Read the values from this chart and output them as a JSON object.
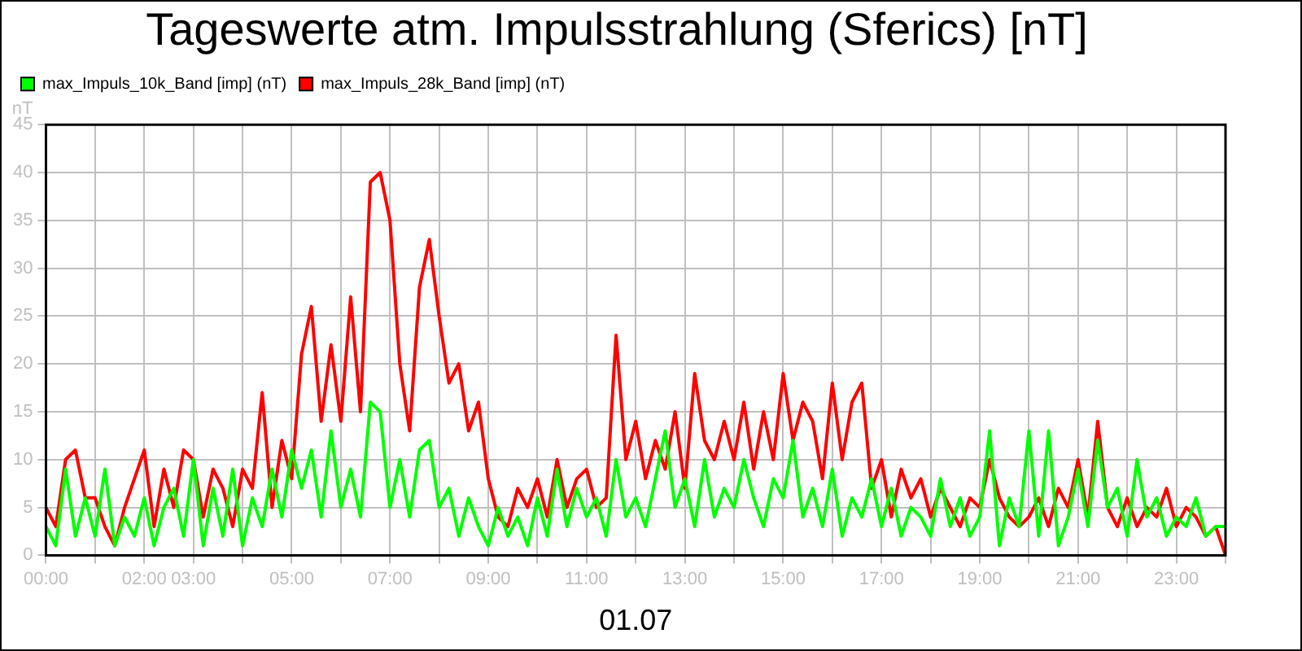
{
  "chart_data": {
    "type": "line",
    "title": "Tageswerte atm. Impulsstrahlung (Sferics) [nT]",
    "xlabel": "01.07",
    "ylabel": "nT",
    "x": [
      0,
      0.2,
      0.4,
      0.6,
      0.8,
      1,
      1.2,
      1.4,
      1.6,
      1.8,
      2,
      2.2,
      2.4,
      2.6,
      2.8,
      3,
      3.2,
      3.4,
      3.6,
      3.8,
      4,
      4.2,
      4.4,
      4.6,
      4.8,
      5,
      5.2,
      5.4,
      5.6,
      5.8,
      6,
      6.2,
      6.4,
      6.6,
      6.8,
      7,
      7.2,
      7.4,
      7.6,
      7.8,
      8,
      8.2,
      8.4,
      8.6,
      8.8,
      9,
      9.2,
      9.4,
      9.6,
      9.8,
      10,
      10.2,
      10.4,
      10.6,
      10.8,
      11,
      11.2,
      11.4,
      11.6,
      11.8,
      12,
      12.2,
      12.4,
      12.6,
      12.8,
      13,
      13.2,
      13.4,
      13.6,
      13.8,
      14,
      14.2,
      14.4,
      14.6,
      14.8,
      15,
      15.2,
      15.4,
      15.6,
      15.8,
      16,
      16.2,
      16.4,
      16.6,
      16.8,
      17,
      17.2,
      17.4,
      17.6,
      17.8,
      18,
      18.2,
      18.4,
      18.6,
      18.8,
      19,
      19.2,
      19.4,
      19.6,
      19.8,
      20,
      20.2,
      20.4,
      20.6,
      20.8,
      21,
      21.2,
      21.4,
      21.6,
      21.8,
      22,
      22.2,
      22.4,
      22.6,
      22.8,
      23,
      23.2,
      23.4,
      23.6,
      23.8,
      24
    ],
    "series": [
      {
        "name": "max_Impuls_10k_Band [imp] (nT)",
        "color": "#00ff00",
        "values": [
          3,
          1,
          9,
          2,
          6,
          2,
          9,
          1,
          4,
          2,
          6,
          1,
          5,
          7,
          2,
          10,
          1,
          7,
          2,
          9,
          1,
          6,
          3,
          9,
          4,
          11,
          7,
          11,
          4,
          13,
          5,
          9,
          4,
          16,
          15,
          5,
          10,
          4,
          11,
          12,
          5,
          7,
          2,
          6,
          3,
          1,
          5,
          2,
          4,
          1,
          6,
          2,
          9,
          3,
          7,
          4,
          6,
          2,
          10,
          4,
          6,
          3,
          8,
          13,
          5,
          8,
          3,
          10,
          4,
          7,
          5,
          10,
          6,
          3,
          8,
          6,
          12,
          4,
          7,
          3,
          9,
          2,
          6,
          4,
          8,
          3,
          7,
          2,
          5,
          4,
          2,
          8,
          3,
          6,
          2,
          4,
          13,
          1,
          6,
          3,
          13,
          2,
          13,
          1,
          4,
          9,
          3,
          12,
          5,
          7,
          2,
          10,
          4,
          6,
          2,
          4,
          3,
          6,
          2,
          3,
          3
        ]
      },
      {
        "name": "max_Impuls_28k_Band [imp] (nT)",
        "color": "#ff0000",
        "values": [
          5,
          3,
          10,
          11,
          6,
          6,
          3,
          1,
          5,
          8,
          11,
          3,
          9,
          5,
          11,
          10,
          4,
          9,
          7,
          3,
          9,
          7,
          17,
          5,
          12,
          8,
          21,
          26,
          14,
          22,
          14,
          27,
          15,
          39,
          40,
          35,
          20,
          13,
          28,
          33,
          25,
          18,
          20,
          13,
          16,
          8,
          4,
          3,
          7,
          5,
          8,
          4,
          10,
          5,
          8,
          9,
          5,
          6,
          23,
          10,
          14,
          8,
          12,
          9,
          15,
          7,
          19,
          12,
          10,
          14,
          10,
          16,
          9,
          15,
          10,
          19,
          12,
          16,
          14,
          8,
          18,
          10,
          16,
          18,
          7,
          10,
          4,
          9,
          6,
          8,
          4,
          7,
          5,
          3,
          6,
          5,
          10,
          6,
          4,
          3,
          4,
          6,
          3,
          7,
          5,
          10,
          4,
          14,
          5,
          3,
          6,
          3,
          5,
          4,
          7,
          3,
          5,
          4,
          2,
          3,
          0
        ]
      }
    ],
    "xlim": [
      0,
      24
    ],
    "xticks": [
      {
        "value": 0,
        "label": "00:00"
      },
      {
        "value": 1,
        "label": null
      },
      {
        "value": 2,
        "label": "02:00"
      },
      {
        "value": 3,
        "label": "03:00"
      },
      {
        "value": 4,
        "label": null
      },
      {
        "value": 5,
        "label": "05:00"
      },
      {
        "value": 6,
        "label": null
      },
      {
        "value": 7,
        "label": "07:00"
      },
      {
        "value": 8,
        "label": null
      },
      {
        "value": 9,
        "label": "09:00"
      },
      {
        "value": 10,
        "label": null
      },
      {
        "value": 11,
        "label": "11:00"
      },
      {
        "value": 12,
        "label": null
      },
      {
        "value": 13,
        "label": "13:00"
      },
      {
        "value": 14,
        "label": null
      },
      {
        "value": 15,
        "label": "15:00"
      },
      {
        "value": 16,
        "label": null
      },
      {
        "value": 17,
        "label": "17:00"
      },
      {
        "value": 18,
        "label": null
      },
      {
        "value": 19,
        "label": "19:00"
      },
      {
        "value": 20,
        "label": null
      },
      {
        "value": 21,
        "label": "21:00"
      },
      {
        "value": 22,
        "label": null
      },
      {
        "value": 23,
        "label": "23:00"
      },
      {
        "value": 24,
        "label": null
      }
    ],
    "ylim": [
      0,
      45
    ],
    "yticks": [
      0,
      5,
      10,
      15,
      20,
      25,
      30,
      35,
      40,
      45
    ],
    "grid": true,
    "legend": "top left",
    "marker": "none",
    "line_style": "solid"
  }
}
